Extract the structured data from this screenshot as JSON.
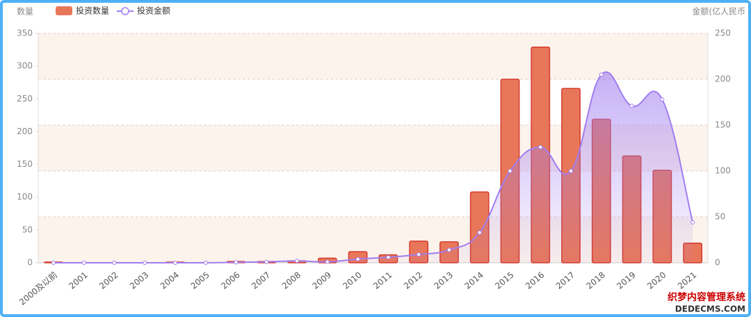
{
  "chart_data": {
    "type": "bar_line",
    "y_axis_name": "数量",
    "y2_axis_name": "金额(亿人民币",
    "categories": [
      "2000及以前",
      "2001",
      "2002",
      "2003",
      "2004",
      "2005",
      "2006",
      "2007",
      "2008",
      "2009",
      "2010",
      "2011",
      "2012",
      "2013",
      "2014",
      "2015",
      "2016",
      "2017",
      "2018",
      "2019",
      "2020",
      "2021"
    ],
    "series": [
      {
        "name": "投资数量",
        "type": "bar",
        "color": "#e8775a",
        "values": [
          1,
          0,
          0,
          0,
          1,
          0,
          2,
          2,
          3,
          7,
          17,
          12,
          33,
          32,
          108,
          280,
          329,
          266,
          219,
          163,
          141,
          30
        ]
      },
      {
        "name": "投资金额",
        "type": "line",
        "axis": "y2",
        "color": "#a07df0",
        "values": [
          0,
          0,
          0,
          0,
          0,
          0,
          0.5,
          1,
          2,
          1,
          4,
          6,
          9,
          14,
          33,
          100,
          126,
          100,
          205,
          171,
          178,
          44
        ]
      }
    ],
    "ylim": [
      0,
      350
    ],
    "yticks": [
      0,
      50,
      100,
      150,
      200,
      250,
      300,
      350
    ],
    "y2lim": [
      0,
      250
    ],
    "y2ticks": [
      0,
      50,
      100,
      150,
      200,
      250
    ],
    "grid": true,
    "watermark": [
      "织梦内容管理系统",
      "DEDECMS.COM"
    ]
  }
}
